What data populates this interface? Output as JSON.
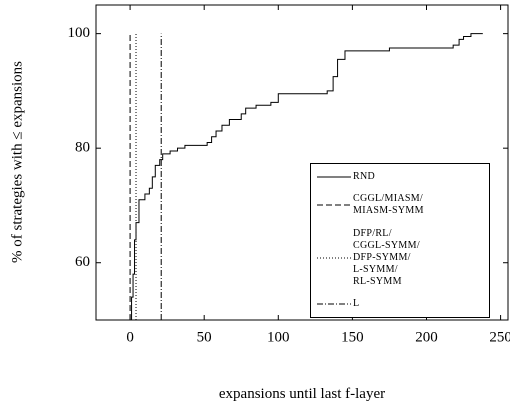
{
  "chart_data": {
    "type": "line",
    "xlabel": "expansions until last f-layer",
    "ylabel": "% of strategies with ≤ expansions",
    "xlim": [
      -23,
      255
    ],
    "ylim": [
      50,
      105
    ],
    "xticks": [
      0,
      50,
      100,
      150,
      200,
      250
    ],
    "yticks": [
      60,
      80,
      100
    ],
    "legend": "lower right",
    "series": [
      {
        "name": "RND",
        "color": "#000000",
        "style": "solid",
        "step": true,
        "x": [
          0,
          1,
          2,
          3,
          4,
          6,
          10,
          13,
          15,
          17,
          20,
          22,
          27,
          32,
          37,
          48,
          52,
          55,
          58,
          62,
          67,
          75,
          78,
          85,
          95,
          100,
          130,
          133,
          137,
          140,
          145,
          165,
          175,
          218,
          222,
          225,
          230,
          238
        ],
        "values": [
          50,
          54,
          58,
          64,
          67,
          71,
          72,
          73,
          75,
          77,
          78,
          79,
          79.5,
          80,
          80.5,
          80.5,
          81,
          82,
          83,
          84,
          85,
          86,
          87,
          87.5,
          88,
          89.5,
          89.5,
          90,
          92.5,
          95.5,
          97,
          97,
          97.5,
          98,
          99,
          99.5,
          100,
          100
        ]
      },
      {
        "name": "CGGL/MIASM/\nMIASM-SYMM",
        "color": "#000000",
        "style": "dashed",
        "x": [
          0,
          0
        ],
        "values": [
          50,
          100
        ]
      },
      {
        "name": "DFP/RL/\nCGGL-SYMM/\nDFP-SYMM/\nL-SYMM/\nRL-SYMM",
        "color": "#000000",
        "style": "dotted",
        "x": [
          4,
          4
        ],
        "values": [
          50,
          100
        ]
      },
      {
        "name": "L",
        "color": "#000000",
        "style": "dashdot",
        "x": [
          21,
          21
        ],
        "values": [
          50,
          100
        ]
      }
    ]
  }
}
